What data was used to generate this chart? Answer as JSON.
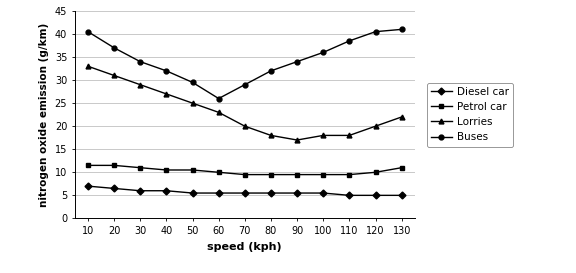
{
  "x": [
    10,
    20,
    30,
    40,
    50,
    60,
    70,
    80,
    90,
    100,
    110,
    120,
    130
  ],
  "diesel_car": [
    7,
    6.5,
    6,
    6,
    5.5,
    5.5,
    5.5,
    5.5,
    5.5,
    5.5,
    5,
    5,
    5
  ],
  "petrol_car": [
    11.5,
    11.5,
    11,
    10.5,
    10.5,
    10,
    9.5,
    9.5,
    9.5,
    9.5,
    9.5,
    10,
    11
  ],
  "lorries": [
    33,
    31,
    29,
    27,
    25,
    23,
    20,
    18,
    17,
    18,
    18,
    20,
    22
  ],
  "buses": [
    40.5,
    37,
    34,
    32,
    29.5,
    26,
    29,
    32,
    34,
    36,
    38.5,
    40.5,
    41
  ],
  "legend_labels": [
    "Diesel car",
    "Petrol car",
    "Lorries",
    "Buses"
  ],
  "xlabel": "speed (kph)",
  "ylabel": "nitrogen oxide emission (g/km)",
  "ylim": [
    0,
    45
  ],
  "yticks": [
    0,
    5,
    10,
    15,
    20,
    25,
    30,
    35,
    40,
    45
  ],
  "background_color": "#ffffff",
  "line_color": "#000000",
  "marker_styles": [
    "D",
    "s",
    "^",
    "o"
  ],
  "marker_size": 3.5,
  "linewidth": 1.0,
  "axis_fontsize": 7.5,
  "label_fontsize": 8,
  "legend_fontsize": 7.5,
  "tick_fontsize": 7
}
